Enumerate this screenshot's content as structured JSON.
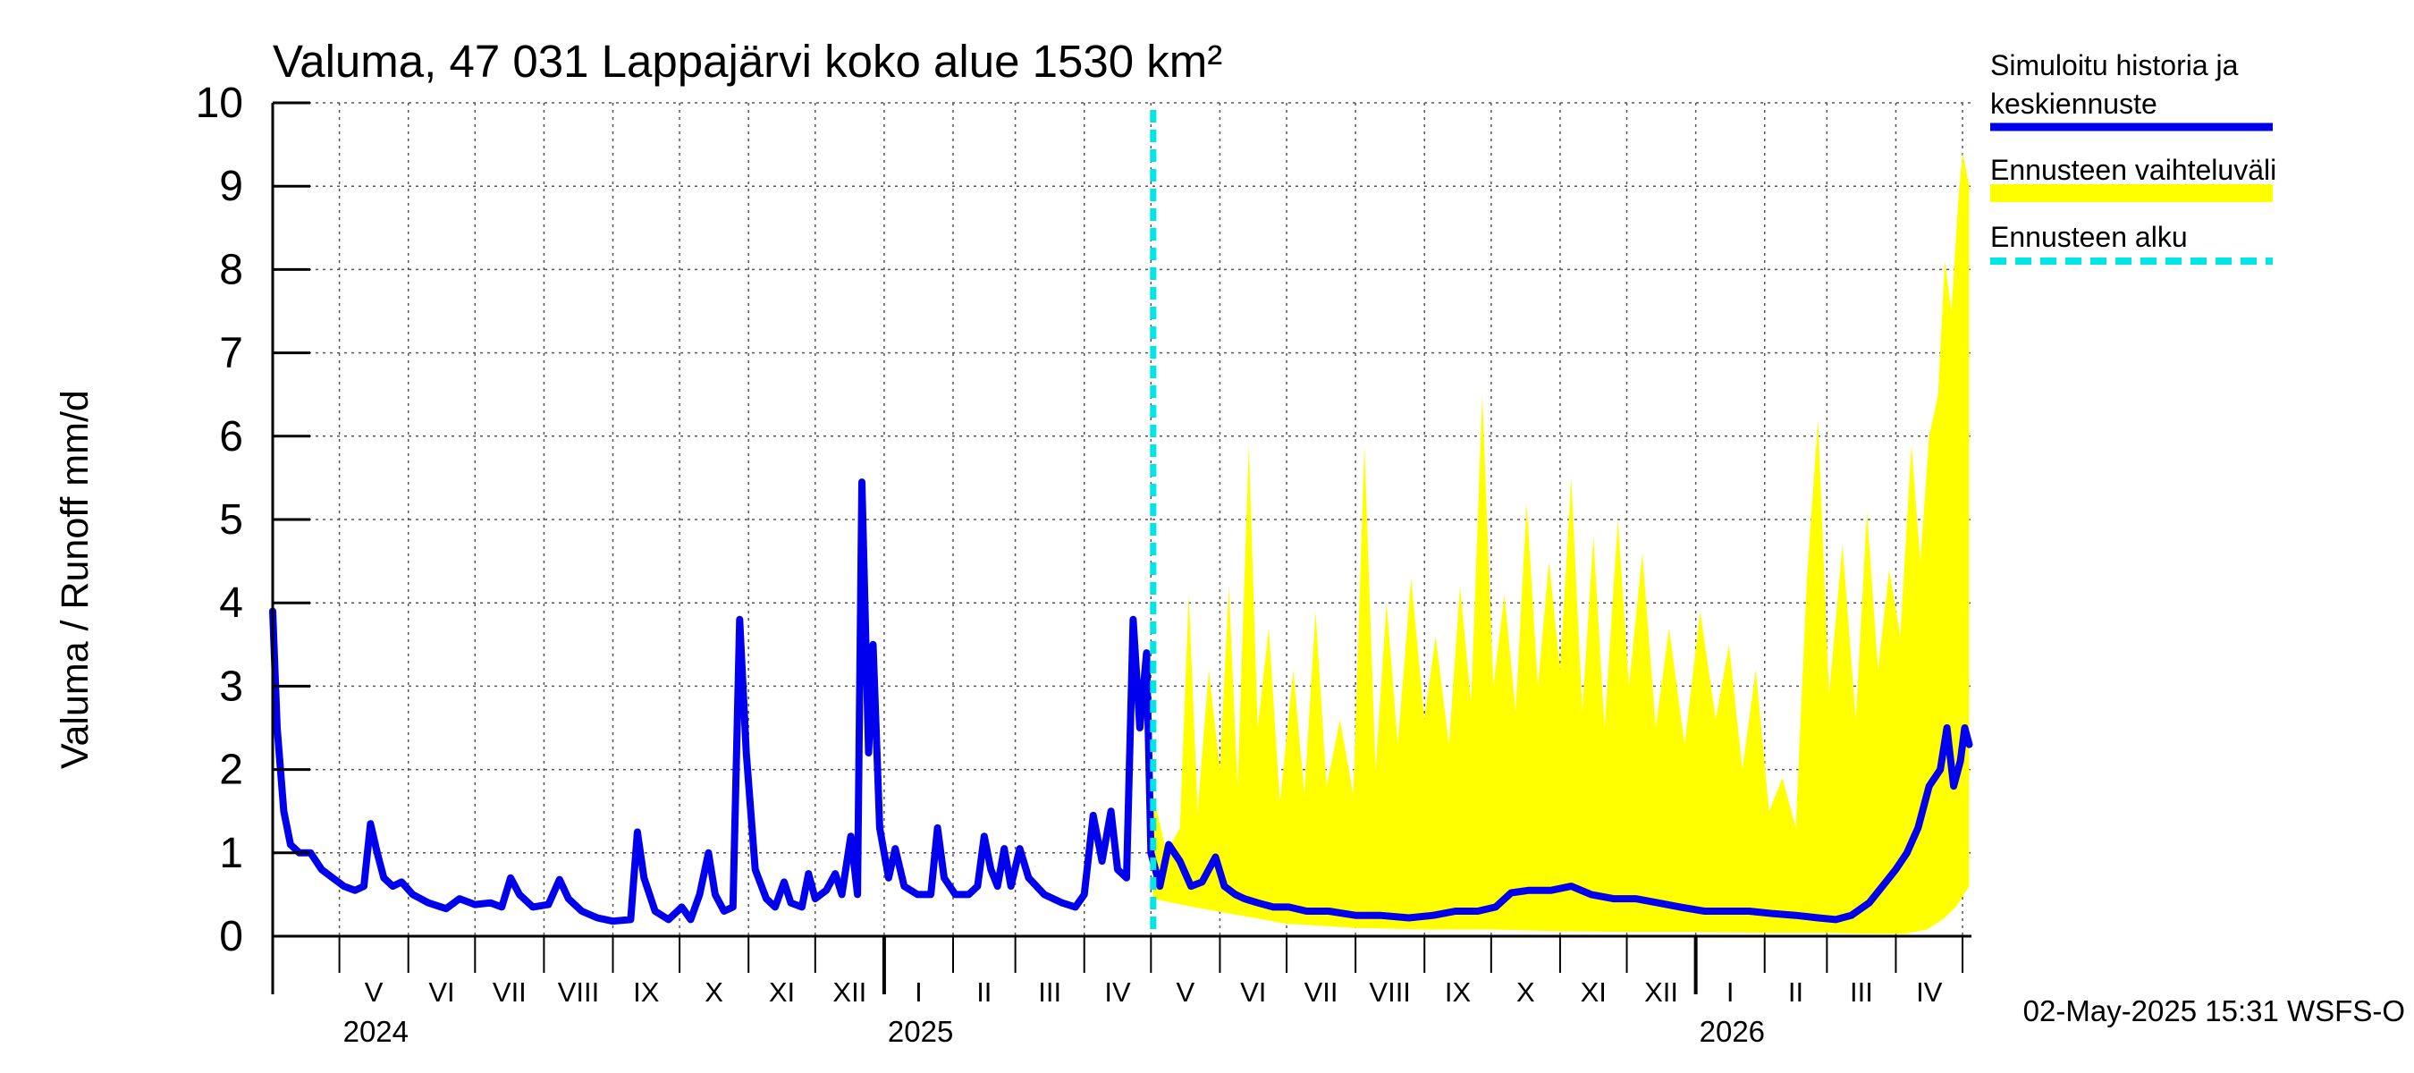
{
  "chart_data": {
    "type": "area",
    "title": "Valuma, 47 031 Lappajärvi koko alue 1530 km²",
    "ylabel": "Valuma / Runoff    mm/d",
    "xlabel": "",
    "ylim": [
      0,
      10
    ],
    "yticks": [
      "0",
      "1",
      "2",
      "3",
      "4",
      "5",
      "6",
      "7",
      "8",
      "9",
      "10"
    ],
    "grid": true,
    "legend_position": "right",
    "x_start": "2024-04-01",
    "x_end": "2026-05-05",
    "month_labels": [
      {
        "label": "V",
        "month": "2024-05"
      },
      {
        "label": "VI",
        "month": "2024-06"
      },
      {
        "label": "VII",
        "month": "2024-07"
      },
      {
        "label": "VIII",
        "month": "2024-08"
      },
      {
        "label": "IX",
        "month": "2024-09"
      },
      {
        "label": "X",
        "month": "2024-10"
      },
      {
        "label": "XI",
        "month": "2024-11"
      },
      {
        "label": "XII",
        "month": "2024-12"
      },
      {
        "label": "I",
        "month": "2025-01"
      },
      {
        "label": "II",
        "month": "2025-02"
      },
      {
        "label": "III",
        "month": "2025-03"
      },
      {
        "label": "IV",
        "month": "2025-04"
      },
      {
        "label": "V",
        "month": "2025-05"
      },
      {
        "label": "VI",
        "month": "2025-06"
      },
      {
        "label": "VII",
        "month": "2025-07"
      },
      {
        "label": "VIII",
        "month": "2025-08"
      },
      {
        "label": "IX",
        "month": "2025-09"
      },
      {
        "label": "X",
        "month": "2025-10"
      },
      {
        "label": "XI",
        "month": "2025-11"
      },
      {
        "label": "XII",
        "month": "2025-12"
      },
      {
        "label": "I",
        "month": "2026-01"
      },
      {
        "label": "II",
        "month": "2026-02"
      },
      {
        "label": "III",
        "month": "2026-03"
      },
      {
        "label": "IV",
        "month": "2026-04"
      }
    ],
    "year_labels": [
      {
        "label": "2024",
        "date": "2024-05-01"
      },
      {
        "label": "2025",
        "date": "2025-01-01"
      },
      {
        "label": "2026",
        "date": "2026-01-01"
      }
    ],
    "forecast_start": "2025-05-02",
    "series": [
      {
        "name": "Simuloitu historia ja keskiennuste",
        "color": "#0000ee",
        "points": [
          [
            "2024-04-01",
            3.9
          ],
          [
            "2024-04-03",
            2.5
          ],
          [
            "2024-04-06",
            1.5
          ],
          [
            "2024-04-09",
            1.1
          ],
          [
            "2024-04-13",
            1.0
          ],
          [
            "2024-04-18",
            1.0
          ],
          [
            "2024-04-23",
            0.8
          ],
          [
            "2024-04-28",
            0.7
          ],
          [
            "2024-05-03",
            0.6
          ],
          [
            "2024-05-08",
            0.55
          ],
          [
            "2024-05-12",
            0.6
          ],
          [
            "2024-05-15",
            1.35
          ],
          [
            "2024-05-18",
            1.0
          ],
          [
            "2024-05-21",
            0.7
          ],
          [
            "2024-05-25",
            0.6
          ],
          [
            "2024-05-29",
            0.65
          ],
          [
            "2024-06-03",
            0.5
          ],
          [
            "2024-06-10",
            0.4
          ],
          [
            "2024-06-18",
            0.33
          ],
          [
            "2024-06-24",
            0.45
          ],
          [
            "2024-07-01",
            0.38
          ],
          [
            "2024-07-08",
            0.4
          ],
          [
            "2024-07-13",
            0.35
          ],
          [
            "2024-07-17",
            0.7
          ],
          [
            "2024-07-21",
            0.5
          ],
          [
            "2024-07-27",
            0.35
          ],
          [
            "2024-08-03",
            0.38
          ],
          [
            "2024-08-08",
            0.68
          ],
          [
            "2024-08-12",
            0.45
          ],
          [
            "2024-08-18",
            0.3
          ],
          [
            "2024-08-25",
            0.22
          ],
          [
            "2024-09-01",
            0.18
          ],
          [
            "2024-09-09",
            0.2
          ],
          [
            "2024-09-12",
            1.25
          ],
          [
            "2024-09-15",
            0.7
          ],
          [
            "2024-09-20",
            0.3
          ],
          [
            "2024-09-26",
            0.2
          ],
          [
            "2024-10-02",
            0.35
          ],
          [
            "2024-10-06",
            0.2
          ],
          [
            "2024-10-10",
            0.5
          ],
          [
            "2024-10-14",
            1.0
          ],
          [
            "2024-10-17",
            0.5
          ],
          [
            "2024-10-21",
            0.3
          ],
          [
            "2024-10-25",
            0.35
          ],
          [
            "2024-10-28",
            3.8
          ],
          [
            "2024-10-31",
            2.2
          ],
          [
            "2024-11-04",
            0.8
          ],
          [
            "2024-11-09",
            0.45
          ],
          [
            "2024-11-13",
            0.35
          ],
          [
            "2024-11-17",
            0.65
          ],
          [
            "2024-11-20",
            0.4
          ],
          [
            "2024-11-25",
            0.35
          ],
          [
            "2024-11-28",
            0.75
          ],
          [
            "2024-12-01",
            0.45
          ],
          [
            "2024-12-06",
            0.55
          ],
          [
            "2024-12-10",
            0.75
          ],
          [
            "2024-12-13",
            0.5
          ],
          [
            "2024-12-17",
            1.2
          ],
          [
            "2024-12-20",
            0.5
          ],
          [
            "2024-12-22",
            5.45
          ],
          [
            "2024-12-25",
            2.2
          ],
          [
            "2024-12-27",
            3.5
          ],
          [
            "2024-12-30",
            1.3
          ],
          [
            "2025-01-03",
            0.7
          ],
          [
            "2025-01-06",
            1.05
          ],
          [
            "2025-01-10",
            0.6
          ],
          [
            "2025-01-16",
            0.5
          ],
          [
            "2025-01-22",
            0.5
          ],
          [
            "2025-01-25",
            1.3
          ],
          [
            "2025-01-28",
            0.7
          ],
          [
            "2025-02-02",
            0.5
          ],
          [
            "2025-02-08",
            0.5
          ],
          [
            "2025-02-12",
            0.6
          ],
          [
            "2025-02-15",
            1.2
          ],
          [
            "2025-02-18",
            0.8
          ],
          [
            "2025-02-21",
            0.6
          ],
          [
            "2025-02-24",
            1.05
          ],
          [
            "2025-02-27",
            0.6
          ],
          [
            "2025-03-03",
            1.05
          ],
          [
            "2025-03-07",
            0.7
          ],
          [
            "2025-03-14",
            0.5
          ],
          [
            "2025-03-22",
            0.4
          ],
          [
            "2025-03-28",
            0.35
          ],
          [
            "2025-04-01",
            0.5
          ],
          [
            "2025-04-05",
            1.45
          ],
          [
            "2025-04-09",
            0.9
          ],
          [
            "2025-04-13",
            1.5
          ],
          [
            "2025-04-16",
            0.8
          ],
          [
            "2025-04-20",
            0.7
          ],
          [
            "2025-04-23",
            3.8
          ],
          [
            "2025-04-26",
            2.5
          ],
          [
            "2025-04-29",
            3.4
          ],
          [
            "2025-05-01",
            1.0
          ],
          [
            "2025-05-05",
            0.6
          ],
          [
            "2025-05-09",
            1.1
          ],
          [
            "2025-05-14",
            0.9
          ],
          [
            "2025-05-19",
            0.6
          ],
          [
            "2025-05-24",
            0.65
          ],
          [
            "2025-05-30",
            0.95
          ],
          [
            "2025-06-03",
            0.6
          ],
          [
            "2025-06-08",
            0.5
          ],
          [
            "2025-06-12",
            0.45
          ],
          [
            "2025-06-18",
            0.4
          ],
          [
            "2025-06-25",
            0.35
          ],
          [
            "2025-07-02",
            0.35
          ],
          [
            "2025-07-10",
            0.3
          ],
          [
            "2025-07-20",
            0.3
          ],
          [
            "2025-08-01",
            0.25
          ],
          [
            "2025-08-12",
            0.25
          ],
          [
            "2025-08-25",
            0.22
          ],
          [
            "2025-09-05",
            0.25
          ],
          [
            "2025-09-15",
            0.3
          ],
          [
            "2025-09-25",
            0.3
          ],
          [
            "2025-10-03",
            0.35
          ],
          [
            "2025-10-10",
            0.52
          ],
          [
            "2025-10-18",
            0.55
          ],
          [
            "2025-10-28",
            0.55
          ],
          [
            "2025-11-06",
            0.6
          ],
          [
            "2025-11-15",
            0.5
          ],
          [
            "2025-11-25",
            0.45
          ],
          [
            "2025-12-05",
            0.45
          ],
          [
            "2025-12-15",
            0.4
          ],
          [
            "2025-12-25",
            0.35
          ],
          [
            "2026-01-05",
            0.3
          ],
          [
            "2026-01-15",
            0.3
          ],
          [
            "2026-01-25",
            0.3
          ],
          [
            "2026-02-05",
            0.27
          ],
          [
            "2026-02-15",
            0.25
          ],
          [
            "2026-02-25",
            0.22
          ],
          [
            "2026-03-05",
            0.2
          ],
          [
            "2026-03-12",
            0.25
          ],
          [
            "2026-03-20",
            0.4
          ],
          [
            "2026-03-26",
            0.6
          ],
          [
            "2026-04-01",
            0.8
          ],
          [
            "2026-04-06",
            1.0
          ],
          [
            "2026-04-11",
            1.3
          ],
          [
            "2026-04-16",
            1.8
          ],
          [
            "2026-04-21",
            2.0
          ],
          [
            "2026-04-24",
            2.5
          ],
          [
            "2026-04-27",
            1.8
          ],
          [
            "2026-04-30",
            2.1
          ],
          [
            "2026-05-02",
            2.5
          ],
          [
            "2026-05-04",
            2.3
          ]
        ]
      },
      {
        "name": "Ennusteen vaihteluväli",
        "color": "#ffff00",
        "upper": [
          [
            "2025-05-02",
            1.7
          ],
          [
            "2025-05-08",
            1.0
          ],
          [
            "2025-05-14",
            1.3
          ],
          [
            "2025-05-18",
            4.1
          ],
          [
            "2025-05-22",
            1.5
          ],
          [
            "2025-05-27",
            3.2
          ],
          [
            "2025-06-01",
            2.0
          ],
          [
            "2025-06-05",
            4.2
          ],
          [
            "2025-06-09",
            1.8
          ],
          [
            "2025-06-14",
            5.9
          ],
          [
            "2025-06-18",
            2.5
          ],
          [
            "2025-06-23",
            3.7
          ],
          [
            "2025-06-28",
            1.6
          ],
          [
            "2025-07-04",
            3.2
          ],
          [
            "2025-07-09",
            1.7
          ],
          [
            "2025-07-14",
            3.9
          ],
          [
            "2025-07-19",
            1.8
          ],
          [
            "2025-07-25",
            2.6
          ],
          [
            "2025-07-31",
            1.7
          ],
          [
            "2025-08-05",
            5.9
          ],
          [
            "2025-08-10",
            2.0
          ],
          [
            "2025-08-15",
            4.0
          ],
          [
            "2025-08-20",
            2.3
          ],
          [
            "2025-08-26",
            4.3
          ],
          [
            "2025-09-01",
            2.6
          ],
          [
            "2025-09-06",
            3.6
          ],
          [
            "2025-09-12",
            2.3
          ],
          [
            "2025-09-17",
            4.2
          ],
          [
            "2025-09-22",
            2.8
          ],
          [
            "2025-09-27",
            6.5
          ],
          [
            "2025-10-02",
            3.0
          ],
          [
            "2025-10-07",
            4.1
          ],
          [
            "2025-10-12",
            2.7
          ],
          [
            "2025-10-17",
            5.2
          ],
          [
            "2025-10-22",
            3.0
          ],
          [
            "2025-10-27",
            4.5
          ],
          [
            "2025-11-01",
            3.2
          ],
          [
            "2025-11-06",
            5.5
          ],
          [
            "2025-11-11",
            2.7
          ],
          [
            "2025-11-16",
            4.8
          ],
          [
            "2025-11-21",
            2.5
          ],
          [
            "2025-11-27",
            5.0
          ],
          [
            "2025-12-02",
            3.0
          ],
          [
            "2025-12-08",
            4.6
          ],
          [
            "2025-12-14",
            2.5
          ],
          [
            "2025-12-20",
            3.7
          ],
          [
            "2025-12-27",
            2.3
          ],
          [
            "2026-01-03",
            3.9
          ],
          [
            "2026-01-10",
            2.6
          ],
          [
            "2026-01-16",
            3.5
          ],
          [
            "2026-01-22",
            2.0
          ],
          [
            "2026-01-28",
            3.2
          ],
          [
            "2026-02-03",
            1.5
          ],
          [
            "2026-02-09",
            1.9
          ],
          [
            "2026-02-15",
            1.3
          ],
          [
            "2026-02-20",
            4.3
          ],
          [
            "2026-02-25",
            6.2
          ],
          [
            "2026-03-02",
            2.9
          ],
          [
            "2026-03-08",
            4.7
          ],
          [
            "2026-03-14",
            2.6
          ],
          [
            "2026-03-19",
            5.1
          ],
          [
            "2026-03-24",
            3.2
          ],
          [
            "2026-03-29",
            4.4
          ],
          [
            "2026-04-03",
            3.6
          ],
          [
            "2026-04-08",
            5.9
          ],
          [
            "2026-04-12",
            4.5
          ],
          [
            "2026-04-16",
            6.0
          ],
          [
            "2026-04-20",
            6.5
          ],
          [
            "2026-04-23",
            8.1
          ],
          [
            "2026-04-26",
            7.5
          ],
          [
            "2026-04-29",
            8.8
          ],
          [
            "2026-05-01",
            9.4
          ],
          [
            "2026-05-04",
            9.0
          ]
        ],
        "lower": [
          [
            "2025-05-02",
            0.45
          ],
          [
            "2025-05-20",
            0.35
          ],
          [
            "2025-06-10",
            0.25
          ],
          [
            "2025-07-01",
            0.15
          ],
          [
            "2025-08-01",
            0.1
          ],
          [
            "2025-09-01",
            0.08
          ],
          [
            "2025-10-01",
            0.08
          ],
          [
            "2025-11-01",
            0.06
          ],
          [
            "2025-12-01",
            0.05
          ],
          [
            "2026-01-01",
            0.05
          ],
          [
            "2026-02-01",
            0.04
          ],
          [
            "2026-03-01",
            0.04
          ],
          [
            "2026-03-20",
            0.03
          ],
          [
            "2026-04-05",
            0.03
          ],
          [
            "2026-04-15",
            0.08
          ],
          [
            "2026-04-22",
            0.2
          ],
          [
            "2026-04-28",
            0.35
          ],
          [
            "2026-05-04",
            0.6
          ]
        ]
      },
      {
        "name": "Ennusteen alku",
        "color": "#00e5e5"
      }
    ]
  },
  "footer": {
    "timestamp": "02-May-2025 15:31 WSFS-O"
  }
}
